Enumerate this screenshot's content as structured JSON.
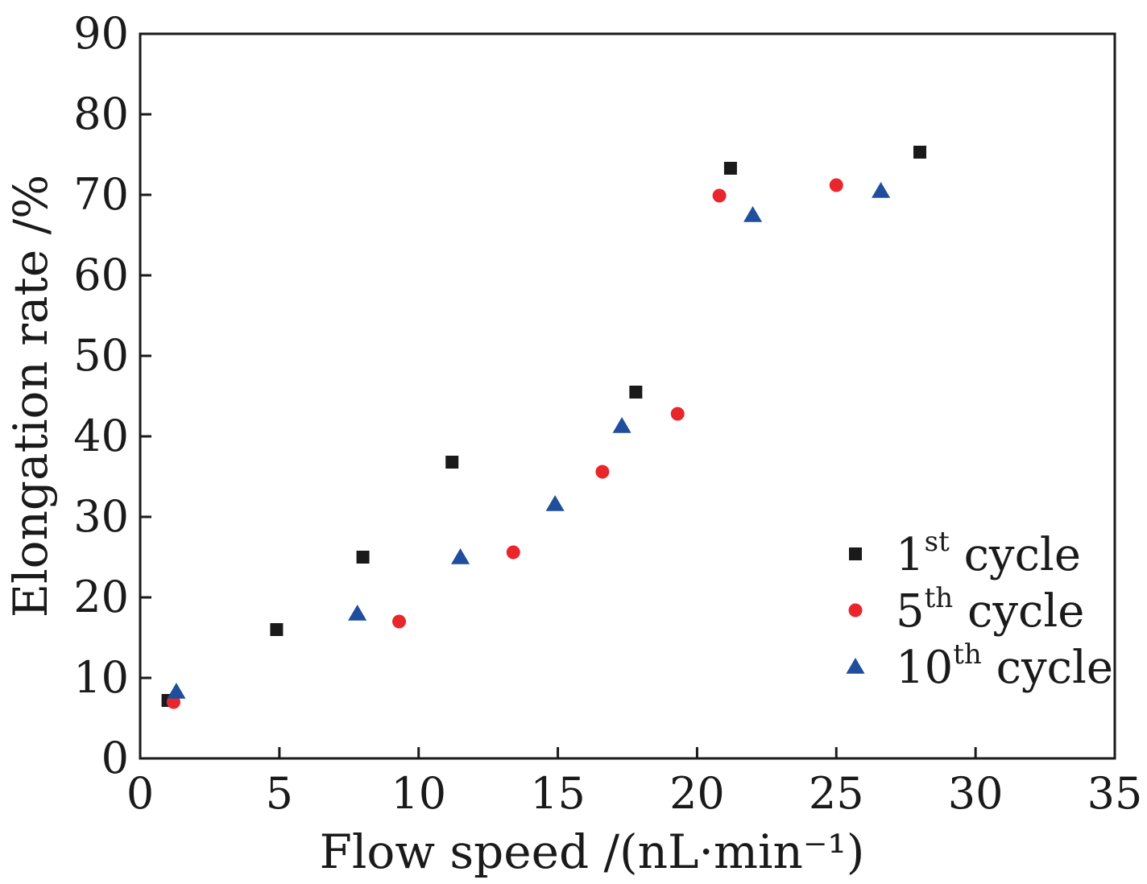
{
  "chart_data": {
    "type": "scatter",
    "xlabel": "Flow speed /(nL·min⁻¹)",
    "ylabel": "Elongation rate /%",
    "xlim": [
      0,
      35
    ],
    "ylim": [
      0,
      90
    ],
    "xticks": [
      0,
      5,
      10,
      15,
      20,
      25,
      30,
      35
    ],
    "yticks": [
      0,
      10,
      20,
      30,
      40,
      50,
      60,
      70,
      80,
      90
    ],
    "grid": false,
    "legend_position": "bottom-right",
    "series": [
      {
        "name": "1st cycle",
        "label_base": "1",
        "label_sup": "st",
        "label_rest": " cycle",
        "marker": "square",
        "color": "#1a1a1a",
        "points": [
          [
            1.0,
            7.2
          ],
          [
            4.9,
            16.0
          ],
          [
            8.0,
            25.0
          ],
          [
            11.2,
            36.8
          ],
          [
            17.8,
            45.5
          ],
          [
            21.2,
            73.3
          ],
          [
            28.0,
            75.3
          ]
        ]
      },
      {
        "name": "5th cycle",
        "label_base": "5",
        "label_sup": "th",
        "label_rest": " cycle",
        "marker": "circle",
        "color": "#e8262b",
        "points": [
          [
            1.2,
            7.0
          ],
          [
            9.3,
            17.0
          ],
          [
            13.4,
            25.6
          ],
          [
            16.6,
            35.6
          ],
          [
            19.3,
            42.8
          ],
          [
            20.8,
            69.9
          ],
          [
            25.0,
            71.2
          ]
        ]
      },
      {
        "name": "10th cycle",
        "label_base": "10",
        "label_sup": "th",
        "label_rest": " cycle",
        "marker": "triangle",
        "color": "#1f4e9c",
        "points": [
          [
            1.3,
            8.3
          ],
          [
            7.8,
            18.0
          ],
          [
            11.5,
            25.0
          ],
          [
            14.9,
            31.6
          ],
          [
            17.3,
            41.3
          ],
          [
            22.0,
            67.5
          ],
          [
            26.6,
            70.5
          ]
        ]
      }
    ]
  }
}
